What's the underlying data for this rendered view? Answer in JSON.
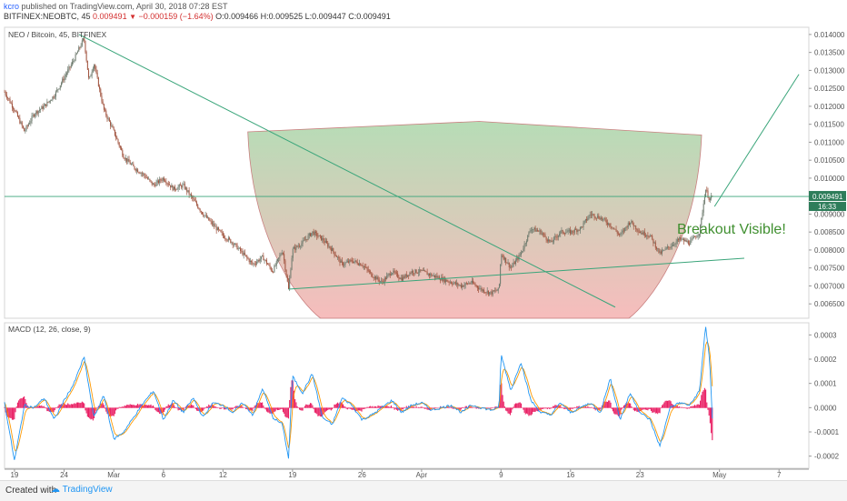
{
  "header": {
    "author": "kcro",
    "published": " published on TradingView.com, April 30, 2018 07:28 EST",
    "symbol": "BITFINEX:NEOBTC, 45 ",
    "last": "0.009491",
    "change": " −0.000159 (−1.64%) ",
    "ohlc": "O:0.009466 H:0.009525 L:0.009447 C:0.009491"
  },
  "footer": {
    "created": "Created with",
    "brand": "TradingView"
  },
  "colors": {
    "candle_up": "#6d7a6d",
    "candle_down": "#a0523d",
    "trendline": "#3aa57a",
    "cup_fill_top": "#9ed19e",
    "cup_fill_bottom": "#f4a6a6",
    "macd_line": "#2196f3",
    "signal_line": "#ff9800",
    "hist": "#e91e63",
    "last_price_tag": "#2e7d5a"
  },
  "chart_data": {
    "type": "candlestick",
    "title": "NEO / Bitcoin, 45, BITFINEX",
    "annotation": "Breakout Visible!",
    "price_ylim": [
      0.0061,
      0.0142
    ],
    "price_ticks": [
      "0.014000",
      "0.013500",
      "0.013000",
      "0.012500",
      "0.012000",
      "0.011500",
      "0.011000",
      "0.010500",
      "0.010000",
      "0.009000",
      "0.008500",
      "0.008000",
      "0.007500",
      "0.007000",
      "0.006500"
    ],
    "last_price_label": "0.009491",
    "last_price_countdown": "16:33",
    "last_price": 0.009491,
    "x_ticks": [
      "19",
      "24",
      "Mar",
      "6",
      "12",
      "19",
      "26",
      "Apr",
      "9",
      "16",
      "23",
      "May",
      "7"
    ],
    "x_tick_days": [
      -10,
      -5,
      0,
      5,
      11,
      18,
      25,
      31,
      39,
      46,
      53,
      61,
      67
    ],
    "x_start_day": -11,
    "x_end_day": 70,
    "price_path": [
      [
        -11,
        0.0124
      ],
      [
        -10,
        0.0119
      ],
      [
        -9,
        0.0113
      ],
      [
        -8,
        0.0118
      ],
      [
        -7,
        0.012
      ],
      [
        -6,
        0.0123
      ],
      [
        -5,
        0.0128
      ],
      [
        -4,
        0.0133
      ],
      [
        -3,
        0.0139
      ],
      [
        -2.5,
        0.0127
      ],
      [
        -2,
        0.0132
      ],
      [
        -1,
        0.0119
      ],
      [
        0,
        0.0113
      ],
      [
        1,
        0.0106
      ],
      [
        2,
        0.0103
      ],
      [
        3,
        0.0101
      ],
      [
        4,
        0.0098
      ],
      [
        5,
        0.01
      ],
      [
        6,
        0.0097
      ],
      [
        7,
        0.0098
      ],
      [
        8,
        0.0094
      ],
      [
        9,
        0.009
      ],
      [
        10,
        0.0087
      ],
      [
        11,
        0.0084
      ],
      [
        12,
        0.0082
      ],
      [
        13,
        0.0079
      ],
      [
        14,
        0.0076
      ],
      [
        15,
        0.0078
      ],
      [
        16,
        0.0074
      ],
      [
        17,
        0.008
      ],
      [
        17.6,
        0.0069
      ],
      [
        18,
        0.008
      ],
      [
        19,
        0.0082
      ],
      [
        20,
        0.0085
      ],
      [
        21,
        0.0083
      ],
      [
        22,
        0.008
      ],
      [
        23,
        0.0076
      ],
      [
        24,
        0.0077
      ],
      [
        25,
        0.0076
      ],
      [
        26,
        0.0073
      ],
      [
        27,
        0.0071
      ],
      [
        28,
        0.0074
      ],
      [
        29,
        0.0072
      ],
      [
        30,
        0.0074
      ],
      [
        31,
        0.0074
      ],
      [
        32,
        0.0073
      ],
      [
        33,
        0.0072
      ],
      [
        34,
        0.0071
      ],
      [
        35,
        0.007
      ],
      [
        36,
        0.0071
      ],
      [
        37,
        0.0069
      ],
      [
        38,
        0.0068
      ],
      [
        38.8,
        0.0069
      ],
      [
        39,
        0.0079
      ],
      [
        40,
        0.0075
      ],
      [
        41,
        0.0079
      ],
      [
        42,
        0.0086
      ],
      [
        43,
        0.0085
      ],
      [
        44,
        0.0082
      ],
      [
        45,
        0.0085
      ],
      [
        46,
        0.0085
      ],
      [
        47,
        0.0086
      ],
      [
        48,
        0.009
      ],
      [
        49,
        0.0089
      ],
      [
        50,
        0.0087
      ],
      [
        51,
        0.0084
      ],
      [
        52,
        0.0088
      ],
      [
        53,
        0.0085
      ],
      [
        54,
        0.0084
      ],
      [
        55,
        0.0079
      ],
      [
        56,
        0.0081
      ],
      [
        57,
        0.0083
      ],
      [
        58,
        0.0082
      ],
      [
        59,
        0.0085
      ],
      [
        59.6,
        0.0097
      ],
      [
        60,
        0.0094
      ],
      [
        60.3,
        0.00949
      ]
    ],
    "macd_ylim": [
      -0.00025,
      0.00035
    ],
    "macd_ticks": [
      "0.0003",
      "0.0002",
      "0.0001",
      "0.0000",
      "-0.0001",
      "-0.0002"
    ],
    "macd_label": "MACD (12, 26, close, 9)",
    "macd_path": [
      [
        -11,
        2e-05
      ],
      [
        -10,
        -0.00022
      ],
      [
        -9,
        1e-05
      ],
      [
        -8,
        0.0
      ],
      [
        -7,
        4e-05
      ],
      [
        -6,
        -5e-05
      ],
      [
        -5,
        3e-05
      ],
      [
        -4,
        0.0001
      ],
      [
        -3,
        0.00021
      ],
      [
        -2,
        -4e-05
      ],
      [
        -1,
        5e-05
      ],
      [
        0,
        -0.00013
      ],
      [
        1,
        -0.0001
      ],
      [
        2,
        -4e-05
      ],
      [
        3,
        2e-05
      ],
      [
        4,
        7e-05
      ],
      [
        5,
        -5e-05
      ],
      [
        6,
        3e-05
      ],
      [
        7,
        -2e-05
      ],
      [
        8,
        4e-05
      ],
      [
        9,
        -4e-05
      ],
      [
        10,
        2e-05
      ],
      [
        11,
        1e-05
      ],
      [
        12,
        -2e-05
      ],
      [
        13,
        2e-05
      ],
      [
        14,
        -3e-05
      ],
      [
        15,
        8e-05
      ],
      [
        16,
        -4e-05
      ],
      [
        17,
        -7e-05
      ],
      [
        17.6,
        -0.00021
      ],
      [
        18,
        0.00013
      ],
      [
        19,
        6e-05
      ],
      [
        20,
        0.00014
      ],
      [
        21,
        -4e-05
      ],
      [
        22,
        -7e-05
      ],
      [
        23,
        4e-05
      ],
      [
        24,
        1e-05
      ],
      [
        25,
        -5e-05
      ],
      [
        26,
        -3e-05
      ],
      [
        27,
        0.0
      ],
      [
        28,
        3e-05
      ],
      [
        29,
        -2e-05
      ],
      [
        30,
        1e-05
      ],
      [
        31,
        2e-05
      ],
      [
        32,
        -1e-05
      ],
      [
        33,
        0.0
      ],
      [
        34,
        1e-05
      ],
      [
        35,
        -2e-05
      ],
      [
        36,
        1e-05
      ],
      [
        37,
        0.0
      ],
      [
        38,
        -1e-05
      ],
      [
        38.8,
        0.0
      ],
      [
        39,
        0.00022
      ],
      [
        40,
        7e-05
      ],
      [
        41,
        0.00019
      ],
      [
        42,
        3e-05
      ],
      [
        43,
        -2e-05
      ],
      [
        44,
        -3e-05
      ],
      [
        45,
        2e-05
      ],
      [
        46,
        -2e-05
      ],
      [
        47,
        0.0
      ],
      [
        48,
        2e-05
      ],
      [
        49,
        -2e-05
      ],
      [
        50,
        0.00012
      ],
      [
        51,
        -5e-05
      ],
      [
        52,
        6e-05
      ],
      [
        53,
        -2e-05
      ],
      [
        54,
        -5e-05
      ],
      [
        55,
        -0.00016
      ],
      [
        56,
        0.0
      ],
      [
        57,
        2e-05
      ],
      [
        58,
        1e-05
      ],
      [
        59,
        7e-05
      ],
      [
        59.6,
        0.00034
      ],
      [
        60,
        0.0002
      ],
      [
        60.3,
        -6e-05
      ]
    ],
    "trendlines": [
      {
        "from": [
          -3.5,
          0.014
        ],
        "to": [
          50.5,
          0.00641
        ]
      },
      {
        "from": [
          17.6,
          0.00691
        ],
        "to": [
          63.5,
          0.00777
        ]
      },
      {
        "from": [
          60.5,
          0.00921
        ],
        "to": [
          69.0,
          0.01289
        ]
      },
      {
        "from": [
          -11,
          0.00949
        ],
        "to": [
          70,
          0.00949
        ]
      }
    ],
    "cup": {
      "left": [
        13.5,
        0.01129
      ],
      "right": [
        59.2,
        0.0112
      ],
      "peak": [
        36.8,
        0.01158
      ],
      "bottom": 0.0061
    }
  }
}
